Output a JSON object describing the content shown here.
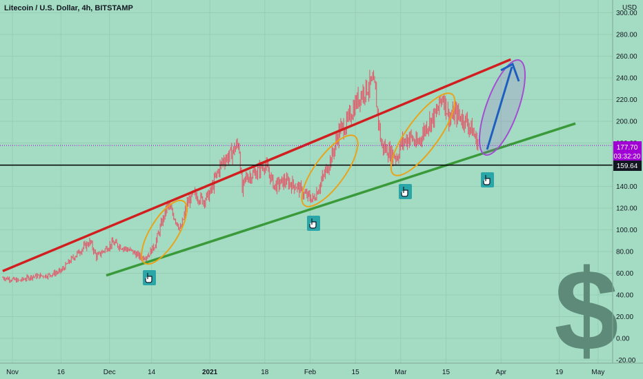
{
  "title": "Litecoin / U.S. Dollar, 4h, BITSTAMP",
  "currency": "USD",
  "colors": {
    "background": "#a4dcc3",
    "candles": "#e05a6a",
    "upper_channel": "#d11f1f",
    "lower_channel": "#3a9a3a",
    "support_line": "#000000",
    "ellipse_orange": "#e8a31a",
    "ellipse_purple": "#a24ed1",
    "arrow": "#1c5fbf",
    "price_tag": "#a000d4",
    "support_tag": "#131722",
    "dollar": "#5e8b79",
    "hand_box": "#2aa6a8"
  },
  "price_tags": {
    "current_price": "177.70",
    "countdown": "03:32:20",
    "support_price": "159.64"
  },
  "icons": [
    "hand-pointer-icon",
    "hand-pointer-icon",
    "hand-pointer-icon",
    "hand-pointer-icon",
    "dollar-sign-icon"
  ],
  "chart_data": {
    "type": "line",
    "title": "Litecoin / U.S. Dollar, 4h, BITSTAMP",
    "ylim": [
      -20,
      300
    ],
    "y_ticks": [
      "300.00",
      "280.00",
      "260.00",
      "240.00",
      "220.00",
      "200.00",
      "180.00",
      "160.00",
      "140.00",
      "120.00",
      "100.00",
      "80.00",
      "60.00",
      "40.00",
      "20.00",
      "0.00",
      "-20.00"
    ],
    "x_ticks": [
      "Nov",
      "16",
      "Dec",
      "14",
      "2021",
      "18",
      "Feb",
      "15",
      "Mar",
      "15",
      "Apr",
      "19",
      "May"
    ],
    "x_tick_dates": [
      "2020-11-01",
      "2020-11-16",
      "2020-12-01",
      "2020-12-14",
      "2021-01-01",
      "2021-01-18",
      "2021-02-01",
      "2021-02-15",
      "2021-03-01",
      "2021-03-15",
      "2021-04-01",
      "2021-04-19",
      "2021-05-01"
    ],
    "series": [
      {
        "values": [
          [
            "2020-10-29",
            56
          ],
          [
            "2020-11-03",
            53
          ],
          [
            "2020-11-07",
            57
          ],
          [
            "2020-11-12",
            58
          ],
          [
            "2020-11-16",
            62
          ],
          [
            "2020-11-19",
            72
          ],
          [
            "2020-11-23",
            84
          ],
          [
            "2020-11-25",
            89
          ],
          [
            "2020-11-27",
            75
          ],
          [
            "2020-11-30",
            83
          ],
          [
            "2020-12-02",
            88
          ],
          [
            "2020-12-05",
            84
          ],
          [
            "2020-12-08",
            80
          ],
          [
            "2020-12-11",
            74
          ],
          [
            "2020-12-13",
            77
          ],
          [
            "2020-12-15",
            86
          ],
          [
            "2020-12-17",
            105
          ],
          [
            "2020-12-19",
            123
          ],
          [
            "2020-12-21",
            112
          ],
          [
            "2020-12-23",
            100
          ],
          [
            "2020-12-25",
            124
          ],
          [
            "2020-12-27",
            133
          ],
          [
            "2020-12-30",
            127
          ],
          [
            "2021-01-01",
            133
          ],
          [
            "2021-01-03",
            150
          ],
          [
            "2021-01-05",
            164
          ],
          [
            "2021-01-07",
            168
          ],
          [
            "2021-01-10",
            180
          ],
          [
            "2021-01-11",
            135
          ],
          [
            "2021-01-12",
            148
          ],
          [
            "2021-01-15",
            152
          ],
          [
            "2021-01-18",
            161
          ],
          [
            "2021-01-21",
            140
          ],
          [
            "2021-01-24",
            145
          ],
          [
            "2021-01-28",
            140
          ],
          [
            "2021-01-30",
            133
          ],
          [
            "2021-02-02",
            128
          ],
          [
            "2021-02-05",
            148
          ],
          [
            "2021-02-08",
            170
          ],
          [
            "2021-02-10",
            192
          ],
          [
            "2021-02-12",
            196
          ],
          [
            "2021-02-15",
            216
          ],
          [
            "2021-02-17",
            226
          ],
          [
            "2021-02-20",
            235
          ],
          [
            "2021-02-21",
            231
          ],
          [
            "2021-02-23",
            178
          ],
          [
            "2021-02-26",
            170
          ],
          [
            "2021-02-28",
            167
          ],
          [
            "2021-03-01",
            179
          ],
          [
            "2021-03-04",
            186
          ],
          [
            "2021-03-06",
            178
          ],
          [
            "2021-03-09",
            196
          ],
          [
            "2021-03-12",
            207
          ],
          [
            "2021-03-14",
            224
          ],
          [
            "2021-03-16",
            203
          ],
          [
            "2021-03-18",
            207
          ],
          [
            "2021-03-21",
            201
          ],
          [
            "2021-03-23",
            192
          ],
          [
            "2021-03-25",
            178
          ]
        ]
      }
    ],
    "annotations": [
      {
        "type": "trendline",
        "color": "red",
        "from": [
          "2020-10-29",
          62
        ],
        "to": [
          "2021-04-04",
          257
        ]
      },
      {
        "type": "trendline",
        "color": "green",
        "from": [
          "2020-11-30",
          58
        ],
        "to": [
          "2021-04-24",
          198
        ]
      },
      {
        "type": "horizontal_line",
        "value": 159.64
      },
      {
        "type": "horizontal_line",
        "value": 177.7,
        "style": "dotted"
      }
    ]
  }
}
